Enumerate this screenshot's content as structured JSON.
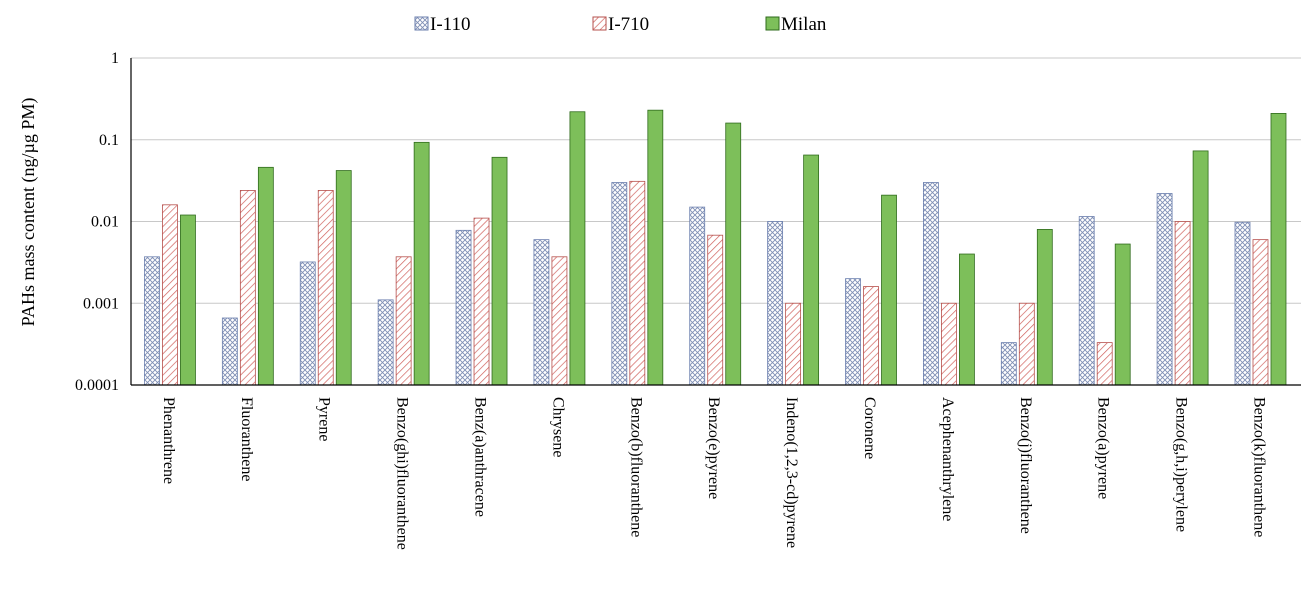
{
  "chart_data": {
    "type": "bar",
    "title": "",
    "xlabel": "",
    "ylabel": "PAHs mass content (ng/µg PM)",
    "yscale": "log",
    "ylim": [
      0.0001,
      1
    ],
    "yticks": [
      {
        "value": 1,
        "label": "1"
      },
      {
        "value": 0.1,
        "label": "0.1"
      },
      {
        "value": 0.01,
        "label": "0.01"
      },
      {
        "value": 0.001,
        "label": "0.001"
      },
      {
        "value": 0.0001,
        "label": "0.0001"
      }
    ],
    "grid": true,
    "legend_position": "top",
    "categories": [
      "Phenanthrene",
      "Fluoranthene",
      "Pyrene",
      "Benzo(ghi)fluoranthene",
      "Benz(a)anthracene",
      "Chrysene",
      "Benzo(b)fluoranthene",
      "Benzo(e)pyrene",
      "Indeno(1,2,3-cd)pyrene",
      "Coronene",
      "Acephenanthrylene",
      "Benzo(j)fluoranthene",
      "Benzo(a)pyrene",
      "Benzo(g,h,i)perylene",
      "Benzo(k)fluoranthene"
    ],
    "series": [
      {
        "name": "I-110",
        "pattern": "crosshatch",
        "color": "#8aa0c8",
        "values": [
          0.0037,
          0.00066,
          0.0032,
          0.0011,
          0.0078,
          0.006,
          0.03,
          0.015,
          0.01,
          0.002,
          0.03,
          0.00033,
          0.0115,
          0.022,
          0.0098
        ]
      },
      {
        "name": "I-710",
        "pattern": "diagonal",
        "color": "#d9706c",
        "values": [
          0.016,
          0.024,
          0.024,
          0.0037,
          0.011,
          0.0037,
          0.031,
          0.0068,
          0.001,
          0.0016,
          0.001,
          0.001,
          0.00033,
          0.01,
          0.006
        ]
      },
      {
        "name": "Milan",
        "pattern": "solid",
        "color": "#7dbf5a",
        "values": [
          0.012,
          0.046,
          0.042,
          0.093,
          0.061,
          0.22,
          0.23,
          0.16,
          0.065,
          0.021,
          0.004,
          0.008,
          0.0053,
          0.073,
          0.21
        ]
      }
    ]
  }
}
